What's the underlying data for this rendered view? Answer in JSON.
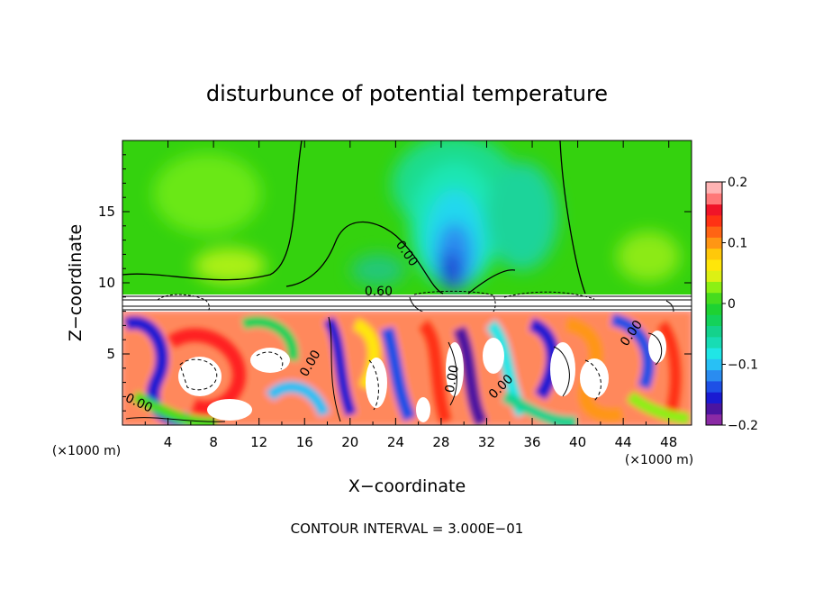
{
  "chart_data": {
    "type": "heatmap",
    "title": "disturbunce of potential temperature",
    "xlabel": "X−coordinate",
    "ylabel": "Z−coordinate",
    "x_unit": "(×1000 m)",
    "x_unit_right": "(×1000 m)",
    "xlim": [
      0,
      50
    ],
    "ylim": [
      0,
      20
    ],
    "x_ticks": [
      4,
      8,
      12,
      16,
      20,
      24,
      28,
      32,
      36,
      40,
      44,
      48
    ],
    "x_tick_labels": [
      "4",
      "8",
      "12",
      "16",
      "20",
      "24",
      "28",
      "32",
      "36",
      "40",
      "44",
      "48"
    ],
    "y_ticks": [
      5,
      10,
      15
    ],
    "y_tick_labels": [
      "5",
      "10",
      "15"
    ],
    "footer": "CONTOUR INTERVAL = 3.000E−01",
    "contour_labels": [
      {
        "text": "0.00",
        "x": 24.7,
        "z": 11.9,
        "angle": 55
      },
      {
        "text": "0.60",
        "x": 22.5,
        "z": 9.1,
        "angle": 0
      },
      {
        "text": "0.00",
        "x": 1.3,
        "z": 1.3,
        "angle": 25
      },
      {
        "text": "0.00",
        "x": 16.8,
        "z": 4.2,
        "angle": -60
      },
      {
        "text": "0.00",
        "x": 29.3,
        "z": 3.2,
        "angle": -80
      },
      {
        "text": "0.00",
        "x": 33.5,
        "z": 2.5,
        "angle": -45
      },
      {
        "text": "0.00",
        "x": 45.0,
        "z": 6.3,
        "angle": -55
      }
    ],
    "colorbar": {
      "vmin": -0.2,
      "vmax": 0.2,
      "tick_values": [
        -0.2,
        -0.1,
        0,
        0.1,
        0.2
      ],
      "tick_labels": [
        "−0.2",
        "−0.1",
        "0",
        "0.1",
        "0.2"
      ],
      "colors": [
        "#8a2aa5",
        "#4b15a0",
        "#1a1ad2",
        "#1e50e6",
        "#2a8cf0",
        "#28c0f5",
        "#20e6e6",
        "#18dcb4",
        "#14d28c",
        "#14d25a",
        "#1ed232",
        "#46dc1e",
        "#8cf014",
        "#dcf014",
        "#ffe60a",
        "#ffc80a",
        "#ff9614",
        "#ff6414",
        "#ff3214",
        "#f01428",
        "#ff7878",
        "#ffb4b4"
      ]
    },
    "grid": false
  }
}
